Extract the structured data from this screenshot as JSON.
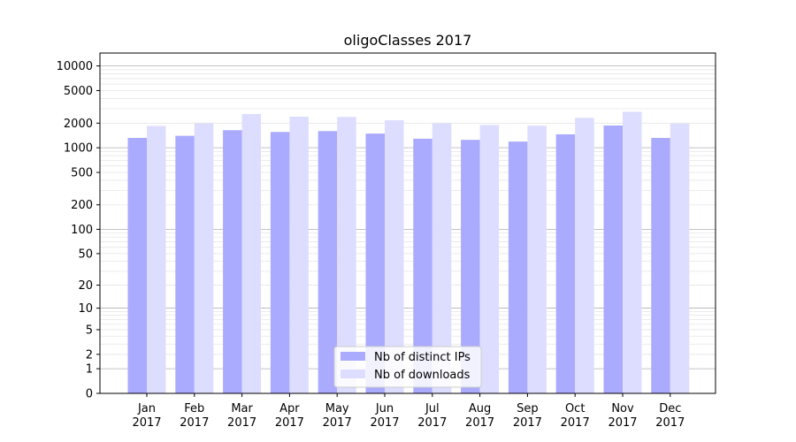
{
  "chart_data": {
    "type": "bar",
    "title": "oligoClasses 2017",
    "xlabel": "",
    "ylabel": "",
    "yscale": "log-like (symlog, 0 at bottom)",
    "ylim": [
      0,
      12000
    ],
    "yticks": [
      0,
      1,
      2,
      5,
      10,
      20,
      50,
      100,
      200,
      500,
      1000,
      2000,
      5000,
      10000
    ],
    "grid": "horizontal major and minor gridlines",
    "legend_position": "bottom-center",
    "categories": [
      [
        "Jan",
        "2017"
      ],
      [
        "Feb",
        "2017"
      ],
      [
        "Mar",
        "2017"
      ],
      [
        "Apr",
        "2017"
      ],
      [
        "May",
        "2017"
      ],
      [
        "Jun",
        "2017"
      ],
      [
        "Jul",
        "2017"
      ],
      [
        "Aug",
        "2017"
      ],
      [
        "Sep",
        "2017"
      ],
      [
        "Oct",
        "2017"
      ],
      [
        "Nov",
        "2017"
      ],
      [
        "Dec",
        "2017"
      ]
    ],
    "series": [
      {
        "name": "Nb of distinct IPs",
        "color": "#aaaaff",
        "values": [
          1320,
          1400,
          1640,
          1560,
          1600,
          1490,
          1290,
          1250,
          1190,
          1460,
          1870,
          1320
        ]
      },
      {
        "name": "Nb of downloads",
        "color": "#ddddff",
        "values": [
          1850,
          1990,
          2580,
          2400,
          2380,
          2170,
          1990,
          1900,
          1860,
          2320,
          2750,
          1980
        ]
      }
    ]
  }
}
